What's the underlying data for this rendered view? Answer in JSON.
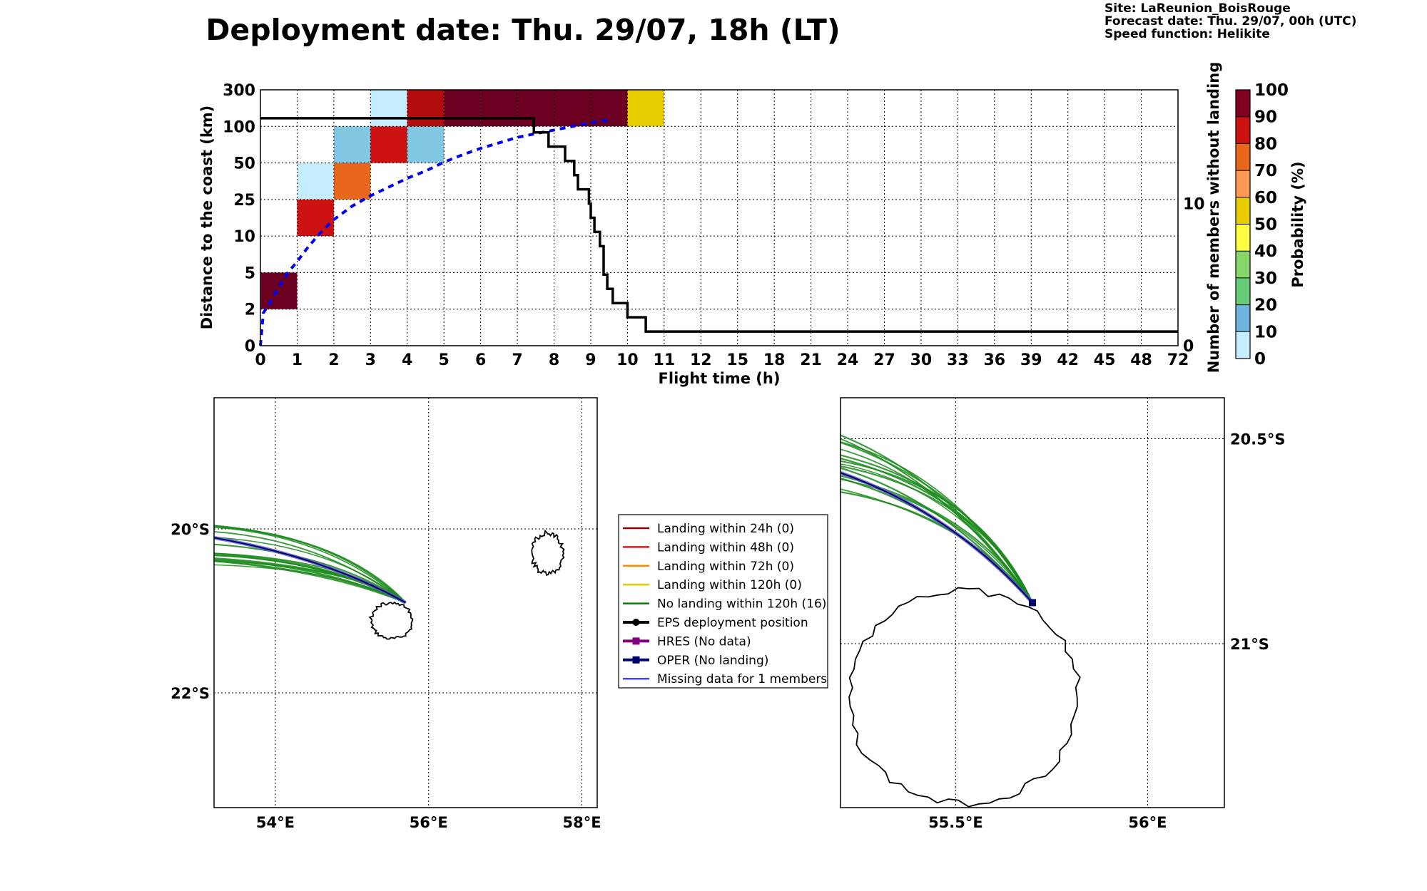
{
  "title": "Deployment date: Thu. 29/07, 18h (LT)",
  "info_lines": [
    "Site: LaReunion_BoisRouge",
    "Forecast date: Thu. 29/07, 00h (UTC)",
    "Speed function: Helikite"
  ],
  "chart_data": [
    {
      "type": "heatmap",
      "title": "",
      "xlabel": "Flight time (h)",
      "ylabel": "Distance to the coast (km)",
      "y2label": "Number of members without landing",
      "x_ticks": [
        "0",
        "1",
        "2",
        "3",
        "4",
        "5",
        "6",
        "7",
        "8",
        "9",
        "10",
        "11",
        "12",
        "15",
        "18",
        "21",
        "24",
        "27",
        "30",
        "33",
        "36",
        "39",
        "42",
        "45",
        "48",
        "72"
      ],
      "y_ticks": [
        "0",
        "2",
        "5",
        "10",
        "25",
        "50",
        "100",
        "300"
      ],
      "y2_ticks": [
        "0",
        "10"
      ],
      "y2_range": [
        0,
        18
      ],
      "grid": true,
      "colorbar": {
        "label": "Probability (%)",
        "ticks": [
          "0",
          "10",
          "20",
          "30",
          "40",
          "50",
          "60",
          "70",
          "80",
          "90",
          "100"
        ],
        "colors": [
          "#c6ecff",
          "#6eb4dc",
          "#66cc77",
          "#88d66a",
          "#ffff44",
          "#e6cc00",
          "#ff9955",
          "#e8671c",
          "#cc1111",
          "#800020"
        ]
      },
      "cells": [
        {
          "x_bin": 0,
          "y_bin": 1,
          "color": "#6b0020"
        },
        {
          "x_bin": 1,
          "y_bin": 3,
          "color": "#cc1111"
        },
        {
          "x_bin": 1,
          "y_bin": 4,
          "color": "#c6ecff"
        },
        {
          "x_bin": 2,
          "y_bin": 4,
          "color": "#e8671c"
        },
        {
          "x_bin": 2,
          "y_bin": 5,
          "color": "#82c8e2"
        },
        {
          "x_bin": 3,
          "y_bin": 5,
          "color": "#cc1111"
        },
        {
          "x_bin": 3,
          "y_bin": 6,
          "color": "#c6ecff"
        },
        {
          "x_bin": 4,
          "y_bin": 5,
          "color": "#82c8e2"
        },
        {
          "x_bin": 4,
          "y_bin": 6,
          "color": "#b30c0c"
        },
        {
          "x_bin": 5,
          "y_bin": 6,
          "color": "#6b0020"
        },
        {
          "x_bin": 6,
          "y_bin": 6,
          "color": "#6b0020"
        },
        {
          "x_bin": 7,
          "y_bin": 6,
          "color": "#6b0020"
        },
        {
          "x_bin": 8,
          "y_bin": 6,
          "color": "#6b0020"
        },
        {
          "x_bin": 9,
          "y_bin": 6,
          "color": "#6b0020"
        },
        {
          "x_bin": 10,
          "y_bin": 6,
          "color": "#e6cc00"
        }
      ],
      "series": [
        {
          "style": "dashed",
          "color": "#0000ee",
          "x_bin": [
            0,
            0.08,
            0.25,
            0.5,
            0.75,
            1,
            1.3,
            1.6,
            2,
            2.5,
            3,
            3.5,
            4,
            4.5,
            5,
            5.5,
            6,
            6.5,
            7,
            7.5,
            8,
            8.5,
            9,
            9.3,
            9.6
          ],
          "y_bin": [
            0,
            0.9,
            1.15,
            1.6,
            2.0,
            2.3,
            2.7,
            3.05,
            3.45,
            3.82,
            4.1,
            4.34,
            4.58,
            4.78,
            5.02,
            5.22,
            5.4,
            5.55,
            5.7,
            5.8,
            5.9,
            6.0,
            6.1,
            6.15,
            6.18
          ]
        },
        {
          "style": "step",
          "color": "#000000",
          "x_bin": [
            0,
            7.45,
            7.45,
            7.85,
            7.85,
            8.3,
            8.3,
            8.55,
            8.55,
            8.65,
            8.65,
            8.95,
            8.95,
            9.0,
            9.0,
            9.1,
            9.1,
            9.25,
            9.25,
            9.35,
            9.35,
            9.45,
            9.45,
            9.6,
            9.6,
            10.0,
            10.0,
            10.1,
            10.1,
            10.5,
            10.5,
            25
          ],
          "members": [
            16,
            16,
            15,
            15,
            14,
            14,
            13,
            13,
            12,
            12,
            11,
            11,
            10,
            10,
            9,
            9,
            8,
            8,
            7,
            7,
            5,
            5,
            4,
            4,
            3,
            3,
            2,
            2,
            2,
            2,
            1,
            1
          ]
        }
      ]
    },
    {
      "type": "map",
      "lon_ticks": [
        "54°E",
        "56°E",
        "58°E"
      ],
      "lat_ticks": [
        "20°S",
        "22°S"
      ],
      "lon_range": [
        53.2,
        58.2
      ],
      "lat_range": [
        -23.4,
        -18.4
      ],
      "deployment": {
        "lon": 55.7,
        "lat": -20.9
      }
    },
    {
      "type": "map",
      "lon_ticks": [
        "55.5°E",
        "56°E"
      ],
      "lat_ticks": [
        "20.5°S",
        "21°S"
      ],
      "lon_range": [
        55.2,
        56.2
      ],
      "lat_range": [
        -21.4,
        -20.4
      ],
      "deployment": {
        "lon": 55.7,
        "lat": -20.9
      }
    }
  ],
  "legend": [
    {
      "label": "Landing within 24h (0)",
      "color": "#8b0000",
      "marker": "none"
    },
    {
      "label": "Landing within 48h (0)",
      "color": "#ee1111",
      "marker": "none"
    },
    {
      "label": "Landing within 72h (0)",
      "color": "#ff8c00",
      "marker": "none"
    },
    {
      "label": "Landing within 120h (0)",
      "color": "#e6cc00",
      "marker": "none"
    },
    {
      "label": "No landing within 120h (16)",
      "color": "#008000",
      "marker": "none"
    },
    {
      "label": "EPS deployment position",
      "color": "#000000",
      "marker": "circle"
    },
    {
      "label": "HRES (No data)",
      "color": "#800080",
      "marker": "square"
    },
    {
      "label": "OPER (No landing)",
      "color": "#00006e",
      "marker": "square"
    },
    {
      "label": "Missing data for 1 members",
      "color": "#4444ff",
      "marker": "none"
    }
  ]
}
